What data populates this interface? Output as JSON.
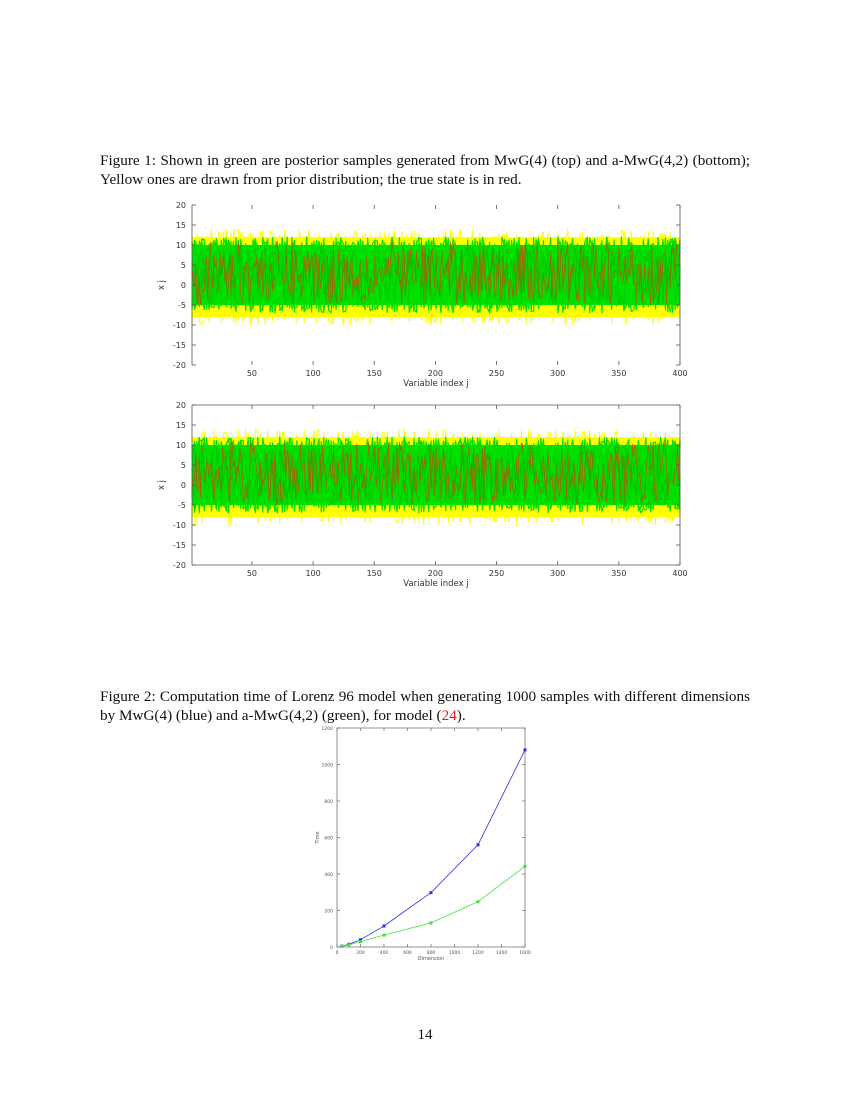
{
  "figure1": {
    "caption_label": "Figure 1:",
    "caption_text": "Shown in green are posterior samples generated from MwG(4) (top) and a-MwG(4,2) (bottom); Yellow ones are drawn from prior distribution; the true state is in red.",
    "colors": {
      "prior": "#ffff00",
      "posterior": "#00e000",
      "truth": "#cc4400"
    }
  },
  "figure2": {
    "caption_label": "Figure 2:",
    "caption_text_before_ref": "Computation time of Lorenz 96 model when generating 1000 samples with different dimensions by MwG(4) (blue) and a-MwG(4,2) (green), for model (",
    "caption_ref": "24",
    "caption_text_after_ref": ")."
  },
  "page_number": "14",
  "chart_data": [
    {
      "type": "area",
      "title": "MwG(4) (top)",
      "xlabel": "Variable index j",
      "ylabel": "x_j",
      "xlim": [
        1,
        400
      ],
      "ylim": [
        -20,
        20
      ],
      "xticks": [
        50,
        100,
        150,
        200,
        250,
        300,
        350,
        400
      ],
      "yticks": [
        -20,
        -15,
        -10,
        -5,
        0,
        5,
        10,
        15,
        20
      ],
      "series": [
        {
          "name": "Prior samples",
          "color": "#ffff00",
          "band": [
            -10,
            14
          ]
        },
        {
          "name": "Posterior samples (MwG(4))",
          "color": "#00e000",
          "band": [
            -7,
            12
          ]
        },
        {
          "name": "True state",
          "color": "#cc4400",
          "mean": 2.5,
          "range": [
            -5,
            11
          ]
        }
      ],
      "grid": false
    },
    {
      "type": "area",
      "title": "a-MwG(4,2) (bottom)",
      "xlabel": "Variable index j",
      "ylabel": "x_j",
      "xlim": [
        1,
        400
      ],
      "ylim": [
        -20,
        20
      ],
      "xticks": [
        50,
        100,
        150,
        200,
        250,
        300,
        350,
        400
      ],
      "yticks": [
        -20,
        -15,
        -10,
        -5,
        0,
        5,
        10,
        15,
        20
      ],
      "series": [
        {
          "name": "Prior samples",
          "color": "#ffff00",
          "band": [
            -10,
            14
          ]
        },
        {
          "name": "Posterior samples (a-MwG(4,2))",
          "color": "#00e000",
          "band": [
            -7,
            12
          ]
        },
        {
          "name": "True state",
          "color": "#cc4400",
          "mean": 2.5,
          "range": [
            -5,
            11
          ]
        }
      ],
      "grid": false
    },
    {
      "type": "line",
      "title": "",
      "xlabel": "Dimension",
      "ylabel": "Time",
      "xlim": [
        0,
        1600
      ],
      "ylim": [
        0,
        1200
      ],
      "xticks": [
        0,
        200,
        400,
        600,
        800,
        1000,
        1200,
        1400,
        1600
      ],
      "yticks": [
        0,
        200,
        400,
        600,
        800,
        1000,
        1200
      ],
      "x": [
        40,
        100,
        200,
        400,
        800,
        1200,
        1600
      ],
      "series": [
        {
          "name": "MwG(4)",
          "color": "#3030e0",
          "values": [
            5,
            15,
            40,
            115,
            298,
            560,
            1080
          ]
        },
        {
          "name": "a-MwG(4,2)",
          "color": "#40e040",
          "values": [
            4,
            12,
            30,
            65,
            132,
            248,
            442
          ]
        }
      ],
      "grid": false
    }
  ]
}
